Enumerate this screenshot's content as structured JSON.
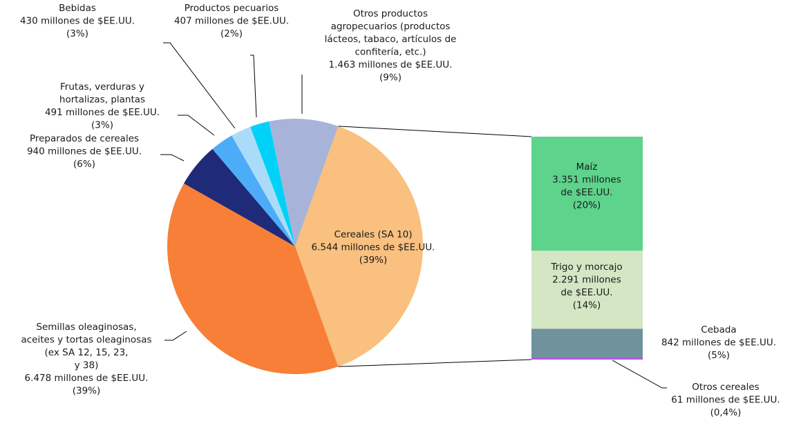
{
  "chart_data": {
    "type": "pie-of-bar",
    "pie": {
      "slices": [
        {
          "name_lines": [
            "Cereales (SA 10)"
          ],
          "value": 6544,
          "value_label": "6.544 millones de $EE.UU.",
          "percent": 39,
          "percent_label": "(39%)",
          "color": "#f9c07f"
        },
        {
          "name_lines": [
            "Semillas oleaginosas,",
            "aceites y tortas oleaginosas",
            "(ex SA 12, 15, 23,",
            "y 38)"
          ],
          "value": 6478,
          "value_label": "6.478 millones de $EE.UU.",
          "percent": 39,
          "percent_label": "(39%)",
          "color": "#f77f37"
        },
        {
          "name_lines": [
            "Preparados de cereales"
          ],
          "value": 940,
          "value_label": "940 millones de $EE.UU.",
          "percent": 6,
          "percent_label": "(6%)",
          "color": "#1f2a78"
        },
        {
          "name_lines": [
            "Frutas, verduras y",
            "hortalizas, plantas"
          ],
          "value": 491,
          "value_label": "491 millones de $EE.UU.",
          "percent": 3,
          "percent_label": "(3%)",
          "color": "#4dacf7"
        },
        {
          "name_lines": [
            "Bebidas"
          ],
          "value": 430,
          "value_label": "430 millones de $EE.UU.",
          "percent": 3,
          "percent_label": "(3%)",
          "color": "#aadcf9"
        },
        {
          "name_lines": [
            "Productos pecuarios"
          ],
          "value": 407,
          "value_label": "407 millones de $EE.UU.",
          "percent": 2,
          "percent_label": "(2%)",
          "color": "#00d2f7"
        },
        {
          "name_lines": [
            "Otros productos",
            "agropecuarios (productos",
            "lácteos, tabaco, artículos de",
            "confitería, etc.)"
          ],
          "value": 1463,
          "value_label": "1.463 millones de $EE.UU.",
          "percent": 9,
          "percent_label": "(9%)",
          "color": "#a7b3d8"
        }
      ]
    },
    "bar": {
      "segments": [
        {
          "name_lines": [
            "Maíz"
          ],
          "value": 3351,
          "value_label": [
            "3.351 millones",
            "de $EE.UU."
          ],
          "percent": 20,
          "percent_label": "(20%)",
          "color": "#5dd38c"
        },
        {
          "name_lines": [
            "Trigo y morcajo"
          ],
          "value": 2291,
          "value_label": [
            "2.291 millones",
            "de $EE.UU."
          ],
          "percent": 14,
          "percent_label": "(14%)",
          "color": "#d4e6c4"
        },
        {
          "name_lines": [
            "Cebada"
          ],
          "value": 842,
          "value_label": [
            "842 millones de $EE.UU."
          ],
          "percent": 5,
          "percent_label": "(5%)",
          "color": "#6f929c"
        },
        {
          "name_lines": [
            "Otros cereales"
          ],
          "value": 61,
          "value_label": [
            "61 millones de $EE.UU."
          ],
          "percent": 0.4,
          "percent_label": "(0,4%)",
          "color": "#b355e8"
        }
      ]
    }
  }
}
